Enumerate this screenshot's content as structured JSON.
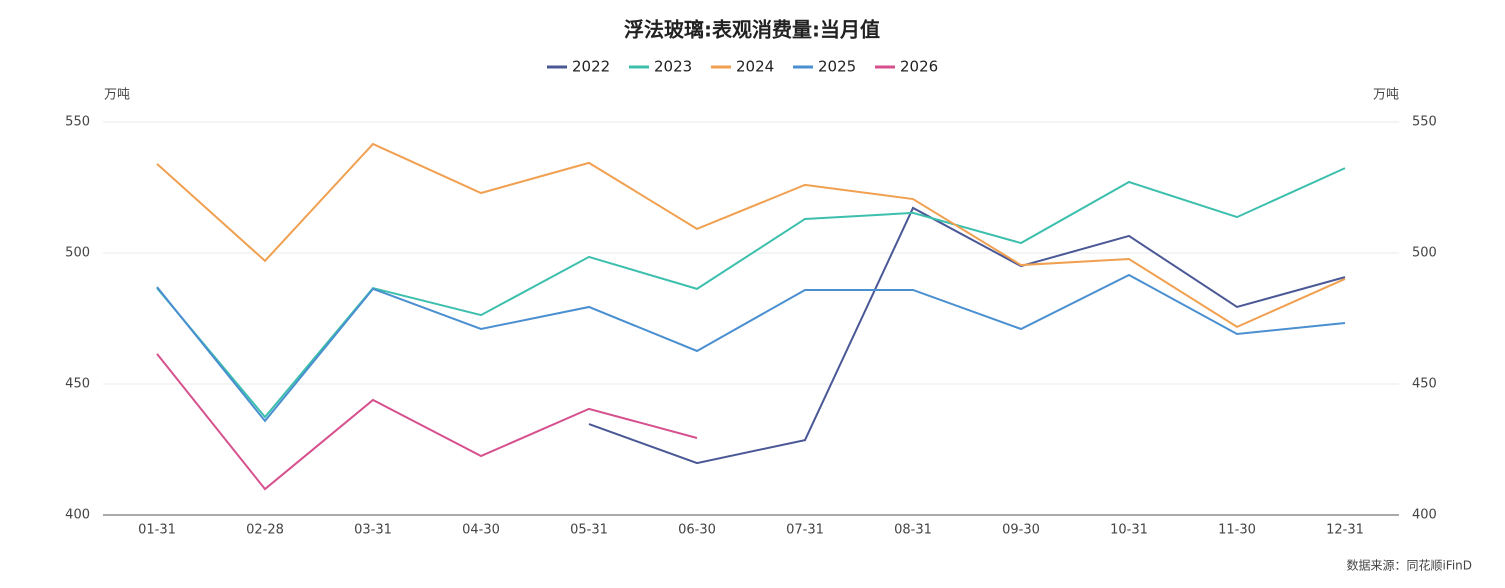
{
  "chart_data": {
    "type": "line",
    "title": "浮法玻璃:表观消费量:当月值",
    "y_unit": "万吨",
    "y2_unit": "万吨",
    "source": "数据来源：同花顺iFinD",
    "categories": [
      "01-31",
      "02-28",
      "03-31",
      "04-30",
      "05-31",
      "06-30",
      "07-31",
      "08-31",
      "09-30",
      "10-31",
      "11-30",
      "12-31"
    ],
    "series": [
      {
        "name": "2022",
        "color": "#4a5896",
        "values": [
          null,
          null,
          null,
          null,
          434.7,
          419.8,
          428.6,
          517.2,
          495,
          506.5,
          479.4,
          490.8
        ]
      },
      {
        "name": "2023",
        "color": "#3dbfad",
        "values": [
          486.6,
          437.4,
          486.6,
          476.3,
          498.5,
          486.3,
          513,
          515.3,
          503.8,
          527.1,
          513.7,
          532.4
        ]
      },
      {
        "name": "2024",
        "color": "#f0a050",
        "values": [
          534,
          497,
          541.6,
          522.9,
          534.4,
          509.2,
          526,
          520.6,
          495.4,
          497.7,
          471.8,
          490.1
        ]
      },
      {
        "name": "2025",
        "color": "#4a8fd0",
        "values": [
          487,
          435.9,
          486.3,
          471,
          479.4,
          462.6,
          485.9,
          485.9,
          471,
          491.6,
          469.1,
          473.3
        ]
      },
      {
        "name": "2026",
        "color": "#d6508e",
        "values": [
          461.5,
          409.9,
          443.9,
          422.5,
          440.5,
          429.4,
          null,
          null,
          null,
          null,
          null,
          null
        ]
      }
    ],
    "ylim": [
      400,
      550
    ],
    "yticks": [
      400,
      450,
      500,
      550
    ],
    "y2lim": [
      400,
      550
    ],
    "y2ticks": [
      400,
      450,
      500,
      550
    ],
    "grid": true,
    "legend": "top"
  }
}
